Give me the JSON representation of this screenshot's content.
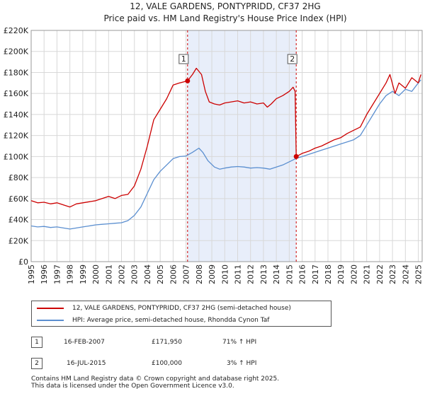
{
  "chart_data": {
    "type": "line",
    "title": "12, VALE GARDENS, PONTYPRIDD, CF37 2HG",
    "subtitle": "Price paid vs. HM Land Registry's House Price Index (HPI)",
    "xlim": [
      1995,
      2025.3
    ],
    "ylim": [
      0,
      220000
    ],
    "y_ticks": [
      0,
      20000,
      40000,
      60000,
      80000,
      100000,
      120000,
      140000,
      160000,
      180000,
      200000,
      220000
    ],
    "y_tick_labels": [
      "£0",
      "£20K",
      "£40K",
      "£60K",
      "£80K",
      "£100K",
      "£120K",
      "£140K",
      "£160K",
      "£180K",
      "£200K",
      "£220K"
    ],
    "x_ticks": [
      1995,
      1996,
      1997,
      1998,
      1999,
      2000,
      2001,
      2002,
      2003,
      2004,
      2005,
      2006,
      2007,
      2008,
      2009,
      2010,
      2011,
      2012,
      2013,
      2014,
      2015,
      2016,
      2017,
      2018,
      2019,
      2020,
      2021,
      2022,
      2023,
      2024,
      2025
    ],
    "x_tick_labels": [
      "1995",
      "1996",
      "1997",
      "1998",
      "1999",
      "2000",
      "2001",
      "2002",
      "2003",
      "2004",
      "2005",
      "2006",
      "2007",
      "2008",
      "2009",
      "2010",
      "2011",
      "2012",
      "2013",
      "2014",
      "2015",
      "2016",
      "2017",
      "2018",
      "2019",
      "2020",
      "2021",
      "2022",
      "2023",
      "2024",
      "2025"
    ],
    "shaded_region": [
      2007.12,
      2015.54
    ],
    "grid": true,
    "series": [
      {
        "name": "12, VALE GARDENS, PONTYPRIDD, CF37 2HG (semi-detached house)",
        "color": "#cc0000",
        "x": [
          1995,
          1995.5,
          1996,
          1996.5,
          1997,
          1997.5,
          1998,
          1998.5,
          1999,
          1999.5,
          2000,
          2000.5,
          2001,
          2001.5,
          2002,
          2002.5,
          2003,
          2003.5,
          2004,
          2004.5,
          2005,
          2005.5,
          2006,
          2006.5,
          2007.12,
          2007.5,
          2007.8,
          2008.2,
          2008.5,
          2008.8,
          2009.2,
          2009.6,
          2010,
          2010.5,
          2011,
          2011.5,
          2012,
          2012.5,
          2013,
          2013.3,
          2013.6,
          2014,
          2014.5,
          2015,
          2015.3,
          2015.45,
          2015.54,
          2016,
          2016.5,
          2017,
          2017.5,
          2018,
          2018.5,
          2019,
          2019.5,
          2020,
          2020.5,
          2021,
          2021.5,
          2022,
          2022.5,
          2022.8,
          2023.2,
          2023.5,
          2024,
          2024.5,
          2025,
          2025.2
        ],
        "y": [
          58000,
          56000,
          56500,
          55000,
          56000,
          54000,
          52000,
          55000,
          56000,
          57000,
          58000,
          60000,
          62000,
          60000,
          63000,
          64000,
          72000,
          88000,
          110000,
          135000,
          145000,
          155000,
          168000,
          170000,
          171950,
          178000,
          184000,
          178000,
          162000,
          152000,
          150000,
          149000,
          151000,
          152000,
          153000,
          151000,
          152000,
          150000,
          151000,
          147000,
          150000,
          155000,
          158000,
          162000,
          166000,
          162000,
          100000,
          103000,
          105000,
          108000,
          110000,
          113000,
          116000,
          118000,
          122000,
          125000,
          128000,
          140000,
          150000,
          160000,
          170000,
          178000,
          160000,
          170000,
          165000,
          175000,
          170000,
          178000
        ]
      },
      {
        "name": "HPI: Average price, semi-detached house, Rhondda Cynon Taf",
        "color": "#5b8fd0",
        "x": [
          1995,
          1995.5,
          1996,
          1996.5,
          1997,
          1997.5,
          1998,
          1998.5,
          1999,
          1999.5,
          2000,
          2000.5,
          2001,
          2001.5,
          2002,
          2002.5,
          2003,
          2003.5,
          2004,
          2004.5,
          2005,
          2005.5,
          2006,
          2006.5,
          2007,
          2007.5,
          2008,
          2008.3,
          2008.7,
          2009.2,
          2009.6,
          2010,
          2010.5,
          2011,
          2011.5,
          2012,
          2012.5,
          2013,
          2013.5,
          2014,
          2014.5,
          2015,
          2015.5,
          2016,
          2016.5,
          2017,
          2017.5,
          2018,
          2018.5,
          2019,
          2019.5,
          2020,
          2020.5,
          2021,
          2021.5,
          2022,
          2022.5,
          2023,
          2023.5,
          2024,
          2024.5,
          2025,
          2025.2
        ],
        "y": [
          34000,
          33000,
          33500,
          32500,
          33000,
          32000,
          31000,
          32000,
          33000,
          34000,
          35000,
          35500,
          36000,
          36500,
          37000,
          39000,
          44000,
          52000,
          65000,
          78000,
          86000,
          92000,
          98000,
          100000,
          100500,
          104000,
          108000,
          104000,
          96000,
          90000,
          88000,
          89000,
          90000,
          90500,
          90000,
          89000,
          89500,
          89000,
          88000,
          90000,
          92000,
          95000,
          98000,
          100000,
          102000,
          104000,
          106000,
          108000,
          110000,
          112000,
          114000,
          116000,
          120000,
          130000,
          140000,
          150000,
          158000,
          162000,
          158000,
          164000,
          162000,
          170000,
          173000
        ]
      }
    ],
    "annotations": [
      {
        "label": "1",
        "x": 2007.12,
        "y": 171950
      },
      {
        "label": "2",
        "x": 2015.54,
        "y": 100000
      }
    ]
  },
  "legend": {
    "red_label": "12, VALE GARDENS, PONTYPRIDD, CF37 2HG (semi-detached house)",
    "blue_label": "HPI: Average price, semi-detached house, Rhondda Cynon Taf"
  },
  "transactions": [
    {
      "num": "1",
      "date": "16-FEB-2007",
      "price": "£171,950",
      "hpi": "71% ↑ HPI"
    },
    {
      "num": "2",
      "date": "16-JUL-2015",
      "price": "£100,000",
      "hpi": "3% ↑ HPI"
    }
  ],
  "footer": {
    "line1": "Contains HM Land Registry data © Crown copyright and database right 2025.",
    "line2": "This data is licensed under the Open Government Licence v3.0."
  },
  "colors": {
    "red": "#cc0000",
    "blue": "#5b8fd0",
    "shade": "#e8eefa",
    "grid": "#d8d8d8"
  }
}
